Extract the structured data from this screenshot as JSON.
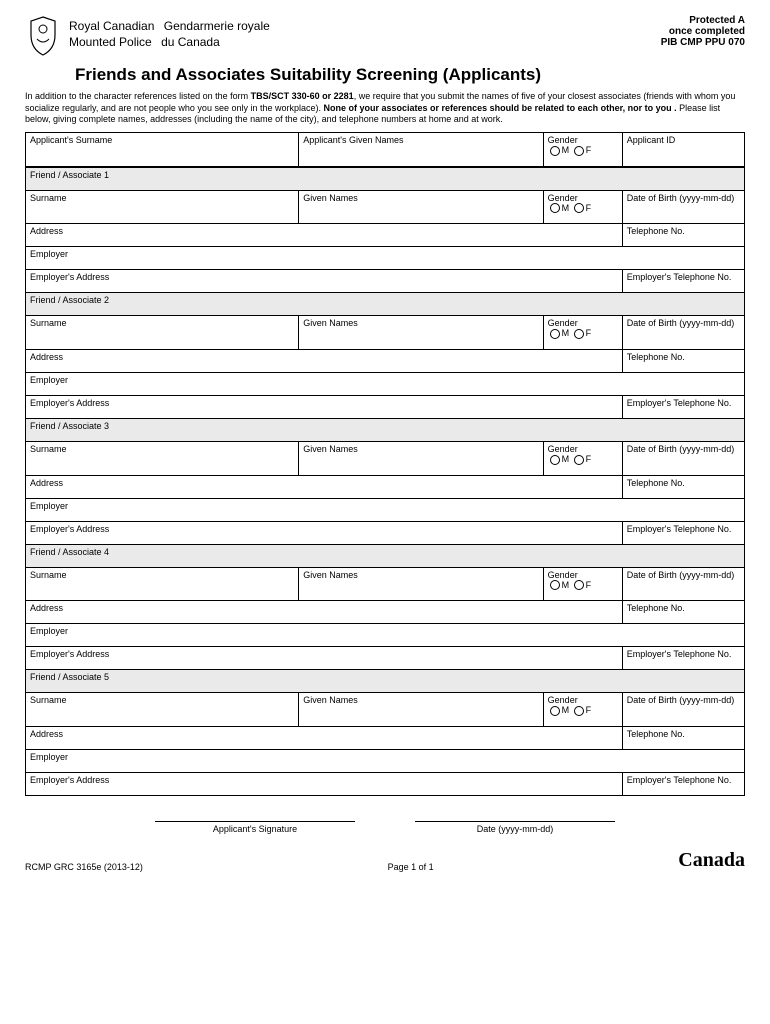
{
  "header": {
    "org_en_line1": "Royal Canadian",
    "org_en_line2": "Mounted Police",
    "org_fr_line1": "Gendarmerie royale",
    "org_fr_line2": "du Canada",
    "protected": "Protected A",
    "once": "once completed",
    "pib": "PIB CMP PPU 070"
  },
  "title": "Friends and Associates Suitability Screening (Applicants)",
  "instructions": {
    "p1a": "In addition to the character references listed on the form ",
    "p1b": "TBS/SCT 330-60 or 2281",
    "p1c": ", we require that you submit the names of five of your closest associates (friends with whom you socialize regularly, and are not people who you see only in the workplace). ",
    "p1d": "None of your associates or references should be related to each other, nor to you .",
    "p1e": " Please list below, giving complete names, addresses (including the name of the city), and telephone numbers at home and at work."
  },
  "labels": {
    "app_surname": "Applicant's Surname",
    "app_given": "Applicant's Given Names",
    "gender": "Gender",
    "m": "M",
    "f": "F",
    "app_id": "Applicant ID",
    "surname": "Surname",
    "given": "Given Names",
    "dob": "Date of Birth (yyyy-mm-dd)",
    "address": "Address",
    "telephone": "Telephone No.",
    "employer": "Employer",
    "emp_address": "Employer's Address",
    "emp_tel": "Employer's Telephone No.",
    "sig": "Applicant's Signature",
    "date": "Date (yyyy-mm-dd)"
  },
  "sections": [
    "Friend / Associate 1",
    "Friend / Associate 2",
    "Friend / Associate 3",
    "Friend / Associate 4",
    "Friend / Associate 5"
  ],
  "footer": {
    "form_no": "RCMP GRC 3165e (2013-12)",
    "page": "Page 1 of 1",
    "wordmark": "Canada"
  }
}
